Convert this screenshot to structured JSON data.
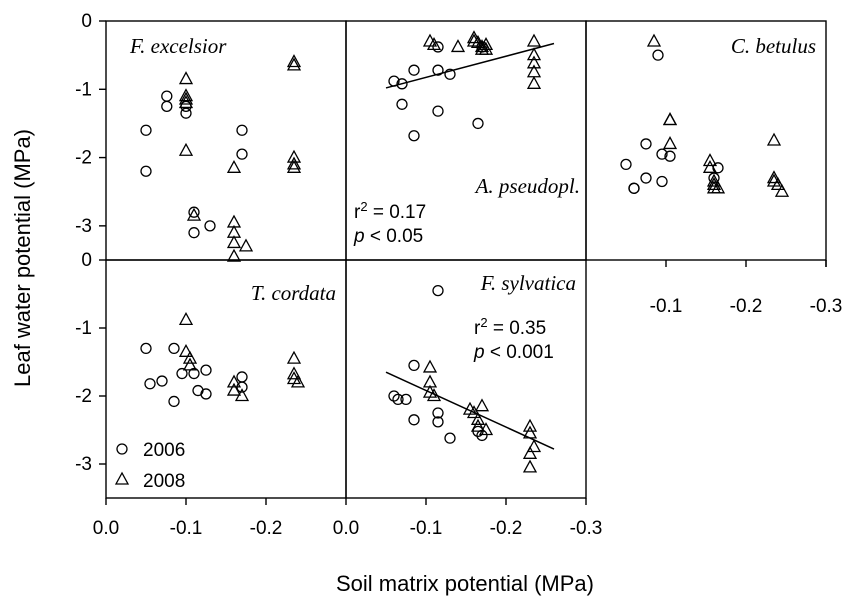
{
  "axis_labels": {
    "x": "Soil matrix potential (MPa)",
    "y": "Leaf water potential (MPa)"
  },
  "legend": [
    {
      "marker": "circle",
      "label": "2006"
    },
    {
      "marker": "triangle",
      "label": "2008"
    }
  ],
  "chart_data": [
    {
      "type": "scatter",
      "title": "F. excelsior",
      "xlim": [
        0,
        -0.3
      ],
      "ylim": [
        -3.5,
        0
      ],
      "series": [
        {
          "name": "2006",
          "points": [
            [
              -0.05,
              -1.6
            ],
            [
              -0.05,
              -2.2
            ],
            [
              -0.076,
              -1.1
            ],
            [
              -0.076,
              -1.25
            ],
            [
              -0.1,
              -1.25
            ],
            [
              -0.1,
              -1.35
            ],
            [
              -0.11,
              -2.8
            ],
            [
              -0.11,
              -3.1
            ],
            [
              -0.13,
              -3.0
            ],
            [
              -0.17,
              -1.6
            ],
            [
              -0.17,
              -1.95
            ]
          ]
        },
        {
          "name": "2008",
          "points": [
            [
              -0.1,
              -0.85
            ],
            [
              -0.1,
              -1.1
            ],
            [
              -0.1,
              -1.15
            ],
            [
              -0.1,
              -1.2
            ],
            [
              -0.1,
              -1.9
            ],
            [
              -0.11,
              -2.85
            ],
            [
              -0.16,
              -2.15
            ],
            [
              -0.16,
              -2.95
            ],
            [
              -0.16,
              -3.1
            ],
            [
              -0.16,
              -3.25
            ],
            [
              -0.16,
              -3.45
            ],
            [
              -0.175,
              -3.3
            ],
            [
              -0.235,
              -0.6
            ],
            [
              -0.235,
              -0.65
            ],
            [
              -0.235,
              -2.0
            ],
            [
              -0.235,
              -2.1
            ],
            [
              -0.235,
              -2.15
            ]
          ]
        }
      ]
    },
    {
      "type": "scatter",
      "title": "A. pseudopl.",
      "xlim": [
        0,
        -0.3
      ],
      "ylim": [
        -3.5,
        0
      ],
      "stats": {
        "r2": "0.17",
        "p": "0.05"
      },
      "trendline": {
        "x": [
          -0.05,
          -0.26
        ],
        "y": [
          -0.98,
          -0.33
        ]
      },
      "series": [
        {
          "name": "2006",
          "points": [
            [
              -0.06,
              -0.88
            ],
            [
              -0.07,
              -0.92
            ],
            [
              -0.07,
              -1.22
            ],
            [
              -0.085,
              -0.72
            ],
            [
              -0.085,
              -1.68
            ],
            [
              -0.115,
              -0.38
            ],
            [
              -0.115,
              -0.72
            ],
            [
              -0.115,
              -1.32
            ],
            [
              -0.13,
              -0.78
            ],
            [
              -0.165,
              -1.5
            ],
            [
              -0.17,
              -0.38
            ]
          ]
        },
        {
          "name": "2008",
          "points": [
            [
              -0.105,
              -0.3
            ],
            [
              -0.11,
              -0.35
            ],
            [
              -0.14,
              -0.38
            ],
            [
              -0.16,
              -0.25
            ],
            [
              -0.16,
              -0.3
            ],
            [
              -0.165,
              -0.32
            ],
            [
              -0.17,
              -0.38
            ],
            [
              -0.17,
              -0.42
            ],
            [
              -0.175,
              -0.35
            ],
            [
              -0.175,
              -0.42
            ],
            [
              -0.235,
              -0.3
            ],
            [
              -0.235,
              -0.5
            ],
            [
              -0.235,
              -0.62
            ],
            [
              -0.235,
              -0.75
            ],
            [
              -0.235,
              -0.92
            ]
          ]
        }
      ]
    },
    {
      "type": "scatter",
      "title": "C. betulus",
      "xlim": [
        0,
        -0.3
      ],
      "ylim": [
        -3.5,
        0
      ],
      "xticks": [
        "-0.1",
        "-0.2",
        "-0.3"
      ],
      "series": [
        {
          "name": "2006",
          "points": [
            [
              -0.05,
              -2.1
            ],
            [
              -0.06,
              -2.45
            ],
            [
              -0.06,
              -2.45
            ],
            [
              -0.075,
              -2.3
            ],
            [
              -0.075,
              -1.8
            ],
            [
              -0.09,
              -0.5
            ],
            [
              -0.095,
              -2.35
            ],
            [
              -0.095,
              -1.95
            ],
            [
              -0.105,
              -1.98
            ],
            [
              -0.165,
              -2.15
            ],
            [
              -0.16,
              -2.3
            ]
          ]
        },
        {
          "name": "2008",
          "points": [
            [
              -0.085,
              -0.3
            ],
            [
              -0.105,
              -1.8
            ],
            [
              -0.105,
              -1.45
            ],
            [
              -0.105,
              -1.45
            ],
            [
              -0.155,
              -2.05
            ],
            [
              -0.155,
              -2.15
            ],
            [
              -0.16,
              -2.35
            ],
            [
              -0.16,
              -2.4
            ],
            [
              -0.16,
              -2.45
            ],
            [
              -0.165,
              -2.45
            ],
            [
              -0.235,
              -1.75
            ],
            [
              -0.235,
              -2.3
            ],
            [
              -0.235,
              -2.35
            ],
            [
              -0.24,
              -2.4
            ],
            [
              -0.245,
              -2.5
            ]
          ]
        }
      ]
    },
    {
      "type": "scatter",
      "title": "T. cordata",
      "xlim": [
        0,
        -0.3
      ],
      "ylim": [
        -3.5,
        0
      ],
      "series": [
        {
          "name": "2006",
          "points": [
            [
              -0.05,
              -1.3
            ],
            [
              -0.055,
              -1.82
            ],
            [
              -0.07,
              -1.78
            ],
            [
              -0.085,
              -2.08
            ],
            [
              -0.085,
              -1.3
            ],
            [
              -0.095,
              -1.67
            ],
            [
              -0.11,
              -1.67
            ],
            [
              -0.115,
              -1.92
            ],
            [
              -0.125,
              -1.62
            ],
            [
              -0.125,
              -1.97
            ],
            [
              -0.17,
              -1.72
            ],
            [
              -0.17,
              -1.87
            ]
          ]
        },
        {
          "name": "2008",
          "points": [
            [
              -0.1,
              -0.88
            ],
            [
              -0.1,
              -1.35
            ],
            [
              -0.105,
              -1.45
            ],
            [
              -0.105,
              -1.55
            ],
            [
              -0.16,
              -1.8
            ],
            [
              -0.16,
              -1.92
            ],
            [
              -0.17,
              -2.0
            ],
            [
              -0.235,
              -1.45
            ],
            [
              -0.235,
              -1.68
            ],
            [
              -0.235,
              -1.75
            ],
            [
              -0.24,
              -1.8
            ]
          ]
        }
      ]
    },
    {
      "type": "scatter",
      "title": "F. sylvatica",
      "xlim": [
        0,
        -0.3
      ],
      "ylim": [
        -3.5,
        0
      ],
      "stats": {
        "r2": "0.35",
        "p": "0.001"
      },
      "trendline": {
        "x": [
          -0.05,
          -0.26
        ],
        "y": [
          -1.65,
          -2.78
        ]
      },
      "series": [
        {
          "name": "2006",
          "points": [
            [
              -0.06,
              -2.0
            ],
            [
              -0.065,
              -2.05
            ],
            [
              -0.075,
              -2.05
            ],
            [
              -0.085,
              -1.55
            ],
            [
              -0.085,
              -2.35
            ],
            [
              -0.115,
              -2.25
            ],
            [
              -0.115,
              -2.38
            ],
            [
              -0.115,
              -0.45
            ],
            [
              -0.13,
              -2.62
            ],
            [
              -0.165,
              -2.52
            ],
            [
              -0.17,
              -2.58
            ]
          ]
        },
        {
          "name": "2008",
          "points": [
            [
              -0.105,
              -1.58
            ],
            [
              -0.105,
              -1.8
            ],
            [
              -0.105,
              -1.95
            ],
            [
              -0.11,
              -2.0
            ],
            [
              -0.155,
              -2.2
            ],
            [
              -0.16,
              -2.25
            ],
            [
              -0.165,
              -2.35
            ],
            [
              -0.165,
              -2.45
            ],
            [
              -0.17,
              -2.15
            ],
            [
              -0.175,
              -2.5
            ],
            [
              -0.23,
              -2.45
            ],
            [
              -0.23,
              -2.55
            ],
            [
              -0.235,
              -2.75
            ],
            [
              -0.23,
              -2.85
            ],
            [
              -0.23,
              -3.05
            ]
          ]
        }
      ]
    }
  ],
  "tick_labels": {
    "y_top": [
      "0",
      "-1",
      "-2",
      "-3"
    ],
    "y_top_bottom": "0",
    "y_bottom": [
      "-1",
      "-2",
      "-3"
    ],
    "x_left": [
      "0.0",
      "-0.1",
      "-0.2"
    ],
    "x_mid": [
      "0.0",
      "-0.1",
      "-0.2",
      "-0.3"
    ]
  }
}
